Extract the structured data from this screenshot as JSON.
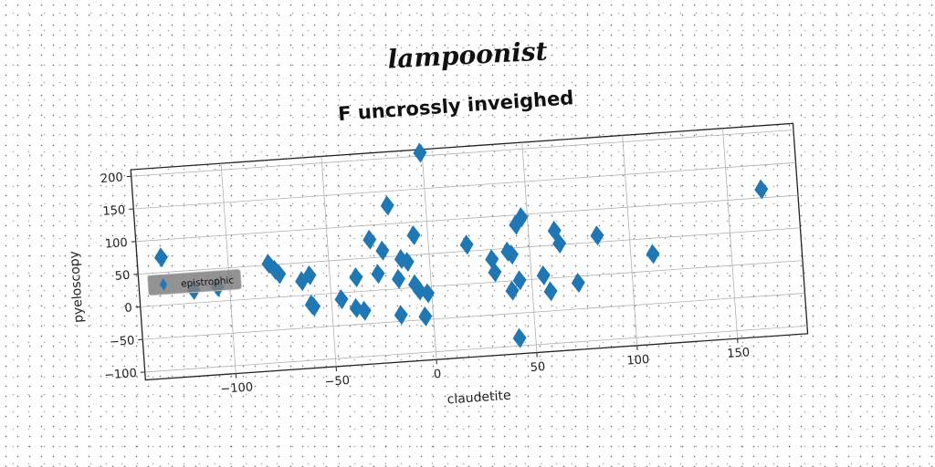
{
  "super_title": "lampoonist",
  "chart_data": {
    "type": "scatter",
    "title": "F uncrossly inveighed",
    "xlabel": "claudetite",
    "ylabel": "pyeloscopy",
    "xlim": [
      -145,
      185
    ],
    "ylim": [
      -112,
      210
    ],
    "xticks": [
      -100,
      -50,
      0,
      50,
      100,
      150
    ],
    "xtick_labels": [
      "−100",
      "−50",
      "0",
      "50",
      "100",
      "150"
    ],
    "yticks": [
      -100,
      -50,
      0,
      50,
      100,
      150,
      200
    ],
    "ytick_labels": [
      "−100",
      "−50",
      "0",
      "50",
      "100",
      "150",
      "200"
    ],
    "grid": true,
    "legend_position": "center-left",
    "marker": "diamond",
    "color": "#1f77b4",
    "series": [
      {
        "name": "epistrophic",
        "points": [
          [
            -133,
            73
          ],
          [
            -118,
            20
          ],
          [
            -106,
            22
          ],
          [
            -80,
            52
          ],
          [
            -77,
            42
          ],
          [
            -75,
            35
          ],
          [
            -64,
            22
          ],
          [
            -60,
            30
          ],
          [
            -60,
            -15
          ],
          [
            -59,
            -18
          ],
          [
            -45,
            -10
          ],
          [
            -38,
            -25
          ],
          [
            -37,
            22
          ],
          [
            -34,
            -30
          ],
          [
            -29,
            78
          ],
          [
            -26,
            25
          ],
          [
            -23,
            60
          ],
          [
            -19,
            128
          ],
          [
            -16,
            15
          ],
          [
            -16,
            -40
          ],
          [
            -14,
            45
          ],
          [
            -11,
            40
          ],
          [
            -8,
            5
          ],
          [
            -7,
            80
          ],
          [
            -6,
            -5
          ],
          [
            -4,
            -45
          ],
          [
            -2,
            -10
          ],
          [
            -1,
            205
          ],
          [
            19,
            60
          ],
          [
            31,
            35
          ],
          [
            32,
            15
          ],
          [
            39,
            45
          ],
          [
            40,
            -15
          ],
          [
            41,
            40
          ],
          [
            42,
            -88
          ],
          [
            44,
            0
          ],
          [
            44,
            85
          ],
          [
            47,
            96
          ],
          [
            56,
            5
          ],
          [
            59,
            -20
          ],
          [
            63,
            72
          ],
          [
            65,
            52
          ],
          [
            73,
            -10
          ],
          [
            84,
            60
          ],
          [
            111,
            26
          ],
          [
            167,
            113
          ]
        ]
      }
    ]
  }
}
